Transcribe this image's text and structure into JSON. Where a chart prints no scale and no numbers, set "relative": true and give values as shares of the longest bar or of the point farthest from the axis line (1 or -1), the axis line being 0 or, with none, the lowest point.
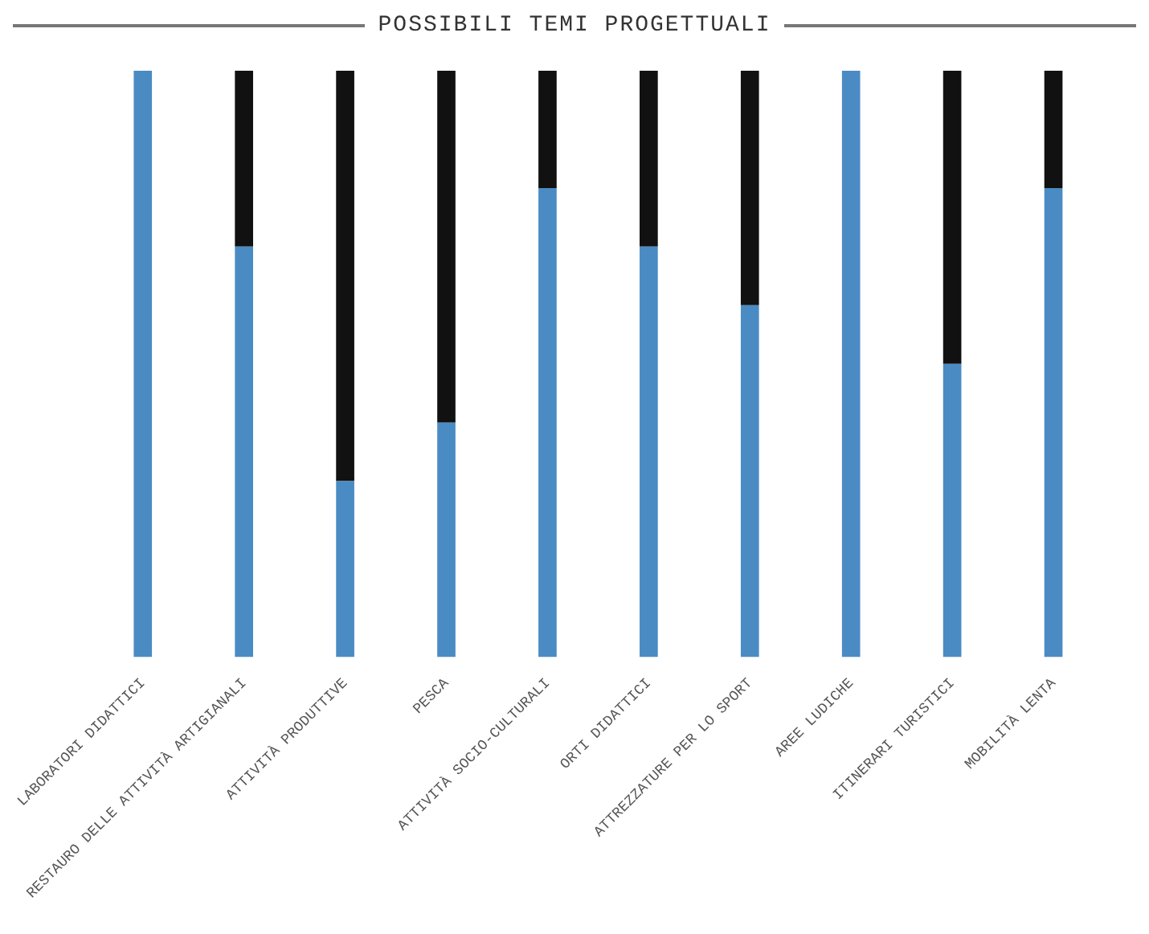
{
  "chart_data": {
    "type": "bar",
    "title": "POSSIBILI TEMI PROGETTUALI",
    "relative": true,
    "stacked": true,
    "categories": [
      "LABORATORI DIDATTICI",
      "RESTAURO DELLE ATTIVITÀ ARTIGIANALI",
      "ATTIVITÀ PRODUTTIVE",
      "PESCA",
      "ATTIVITÀ SOCIO-CULTURALI",
      "ORTI DIDATTICI",
      "ATTREZZATURE PER LO SPORT",
      "AREE LUDICHE",
      "ITINERARI TURISTICI",
      "MOBILITÀ LENTA"
    ],
    "series": [
      {
        "color": "#4a8bc4",
        "values": [
          1,
          0.7,
          0.3,
          0.4,
          0.8,
          0.7,
          0.6,
          1,
          0.5,
          0.8
        ]
      },
      {
        "color": "#111111",
        "values": [
          0,
          0.3,
          0.7,
          0.6,
          0.2,
          0.3,
          0.4,
          0,
          0.5,
          0.2
        ]
      }
    ]
  }
}
